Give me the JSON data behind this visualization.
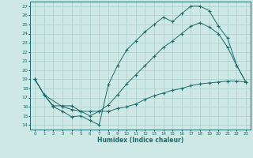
{
  "xlabel": "Humidex (Indice chaleur)",
  "ylabel": "",
  "xlim": [
    -0.5,
    23.5
  ],
  "ylim": [
    13.5,
    27.5
  ],
  "xticks": [
    0,
    1,
    2,
    3,
    4,
    5,
    6,
    7,
    8,
    9,
    10,
    11,
    12,
    13,
    14,
    15,
    16,
    17,
    18,
    19,
    20,
    21,
    22,
    23
  ],
  "yticks": [
    14,
    15,
    16,
    17,
    18,
    19,
    20,
    21,
    22,
    23,
    24,
    25,
    26,
    27
  ],
  "background_color": "#cde8e5",
  "line_color": "#1a6b6b",
  "grid_color": "#aacfcc",
  "line1_x": [
    0,
    1,
    2,
    3,
    4,
    5,
    6,
    7,
    8,
    9,
    10,
    11,
    12,
    13,
    14,
    15,
    16,
    17,
    18,
    19,
    20,
    21,
    22,
    23
  ],
  "line1_y": [
    19.0,
    17.3,
    16.0,
    15.5,
    14.9,
    15.0,
    14.5,
    14.0,
    18.4,
    20.5,
    22.2,
    23.2,
    24.2,
    25.0,
    25.8,
    25.3,
    26.2,
    27.0,
    27.0,
    26.5,
    24.8,
    23.5,
    20.5,
    18.7
  ],
  "line2_x": [
    0,
    1,
    3,
    4,
    5,
    6,
    7,
    8,
    9,
    10,
    11,
    12,
    13,
    14,
    15,
    16,
    17,
    18,
    19,
    20,
    21,
    22,
    23
  ],
  "line2_y": [
    19.0,
    17.3,
    16.0,
    15.7,
    15.5,
    15.5,
    15.5,
    16.2,
    17.3,
    18.5,
    19.5,
    20.5,
    21.5,
    22.5,
    23.2,
    24.0,
    24.8,
    25.2,
    24.7,
    24.0,
    22.5,
    20.5,
    18.7
  ],
  "line3_x": [
    0,
    1,
    2,
    3,
    4,
    5,
    6,
    7,
    8,
    9,
    10,
    11,
    12,
    13,
    14,
    15,
    16,
    17,
    18,
    19,
    20,
    21,
    22,
    23
  ],
  "line3_y": [
    19.0,
    17.3,
    16.1,
    16.1,
    16.1,
    15.5,
    15.0,
    15.5,
    15.5,
    15.8,
    16.0,
    16.3,
    16.8,
    17.2,
    17.5,
    17.8,
    18.0,
    18.3,
    18.5,
    18.6,
    18.7,
    18.8,
    18.8,
    18.7
  ]
}
